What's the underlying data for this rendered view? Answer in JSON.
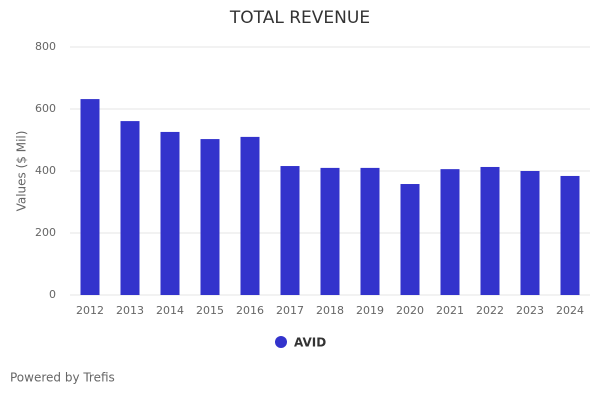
{
  "chart_data": {
    "type": "bar",
    "title": "TOTAL REVENUE",
    "y_label": "Values ($ Mil)",
    "categories": [
      "2012",
      "2013",
      "2014",
      "2015",
      "2016",
      "2017",
      "2018",
      "2019",
      "2020",
      "2021",
      "2022",
      "2023",
      "2024"
    ],
    "series": [
      {
        "name": "AVID",
        "color": "#3333cc",
        "values": [
          632,
          561,
          526,
          503,
          510,
          416,
          410,
          410,
          358,
          406,
          413,
          400,
          384
        ]
      }
    ],
    "ylim": [
      0,
      800
    ],
    "yticks": [
      0,
      200,
      400,
      600,
      800
    ],
    "grid": true,
    "legend": "bottom",
    "credit": "Powered by Trefis"
  }
}
